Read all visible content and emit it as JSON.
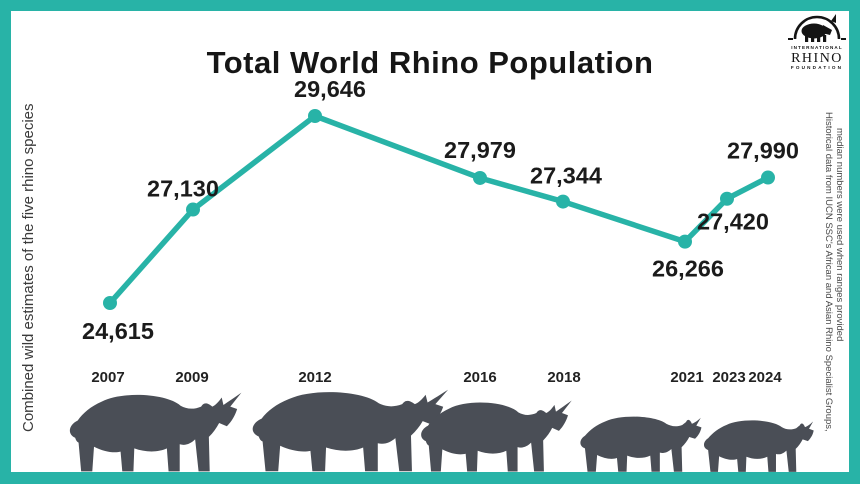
{
  "title": "Total World Rhino Population",
  "left_caption": "Combined wild estimates of the five rhino species",
  "source_note": {
    "line1": "Historical data from IUCN SSC's African and Asian Rhino Specialist Groups,",
    "line2": "median numbers were used when ranges provided"
  },
  "logo": {
    "line1": "INTERNATIONAL",
    "line2": "RHINO",
    "line3": "FOUNDATION"
  },
  "colors": {
    "accent_teal": "#28B3A7",
    "rhino_gray": "#4A4E56",
    "label_black": "#1B1B1B",
    "caption_gray": "#3A3A3A"
  },
  "chart_data": {
    "type": "line",
    "title": "Total World Rhino Population",
    "x": [
      2007,
      2009,
      2012,
      2016,
      2018,
      2021,
      2023,
      2024
    ],
    "values": [
      24615,
      27130,
      29646,
      27979,
      27344,
      26266,
      27420,
      27990
    ],
    "labels": [
      "24,615",
      "27,130",
      "29,646",
      "27,979",
      "27,344",
      "26,266",
      "27,420",
      "27,990"
    ],
    "xlabel": "",
    "ylabel": "Combined wild estimates of the five rhino species",
    "ylim": [
      24000,
      30200
    ],
    "grid": false,
    "legend": "none",
    "line_color": "#28B3A7",
    "marker": "circle"
  }
}
